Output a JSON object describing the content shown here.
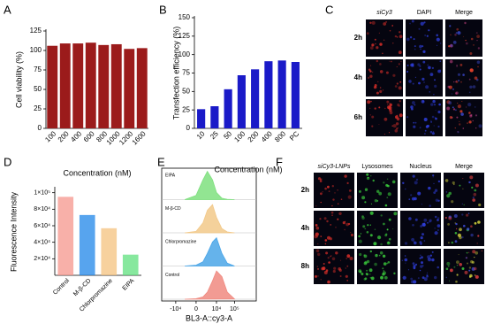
{
  "panel_labels": [
    "A",
    "B",
    "C",
    "D",
    "E",
    "F"
  ],
  "chart_data": [
    {
      "type": "bar",
      "ylabel": "Cell viability (%)",
      "xlabel": "Concentration (nM)",
      "categories": [
        "100",
        "200",
        "400",
        "600",
        "800",
        "1000",
        "1200",
        "1600"
      ],
      "values": [
        106,
        109,
        109,
        110,
        107,
        108,
        102,
        103
      ],
      "color": "#9b1b1b",
      "ylim": [
        0,
        125
      ],
      "yticks": [
        0,
        25,
        50,
        75,
        100,
        125
      ]
    },
    {
      "type": "bar",
      "ylabel": "Transfection efficiency (%)",
      "xlabel": "Concentration (nM)",
      "categories": [
        "10",
        "25",
        "50",
        "100",
        "200",
        "400",
        "800",
        "PC"
      ],
      "values": [
        26,
        30,
        53,
        72,
        80,
        91,
        92,
        90
      ],
      "color": "#1a1ac8",
      "ylim": [
        0,
        150
      ],
      "yticks": [
        0,
        25,
        50,
        75,
        100,
        125,
        150
      ]
    },
    {
      "type": "bar",
      "ylabel": "Fluorescence Intensity",
      "categories": [
        "Control",
        "M-β-CD",
        "Chlorpromazine",
        "EIPA"
      ],
      "values": [
        95000,
        73000,
        57000,
        25000
      ],
      "colors": [
        "#f5958c",
        "#1f86e8",
        "#f4c27e",
        "#5fe07e"
      ],
      "ylim": [
        0,
        105000
      ],
      "yticks": [
        {
          "value": 20000,
          "label": "2×10⁴"
        },
        {
          "value": 40000,
          "label": "4×10⁴"
        },
        {
          "value": 60000,
          "label": "6×10⁴"
        },
        {
          "value": 80000,
          "label": "8×10⁴"
        },
        {
          "value": 100000,
          "label": "1×10⁵"
        }
      ]
    },
    {
      "type": "ridgeline",
      "xlabel": "BL3-A::cy3-A",
      "xscale": "asinh",
      "x": [
        -3000,
        0,
        1500,
        3000,
        6000,
        10000,
        20000,
        40000,
        100000
      ],
      "xlim": [
        -60000,
        1600000
      ],
      "xticks": [
        {
          "value": -10000,
          "label": "-10⁴"
        },
        0,
        {
          "value": 10000,
          "label": "10⁴"
        },
        {
          "value": 100000,
          "label": "10⁵"
        }
      ],
      "series": [
        {
          "name": "EIPA",
          "color": "#7fe07f",
          "values": [
            0,
            15,
            70,
            100,
            70,
            25,
            5,
            1,
            0
          ]
        },
        {
          "name": "M-β-CD",
          "color": "#f2c98a",
          "values": [
            0,
            5,
            35,
            80,
            100,
            55,
            15,
            3,
            0
          ]
        },
        {
          "name": "Chlorpromazine",
          "color": "#4aa6e8",
          "values": [
            0,
            3,
            15,
            45,
            85,
            100,
            45,
            10,
            0
          ]
        },
        {
          "name": "Control",
          "color": "#f08a80",
          "values": [
            0,
            2,
            8,
            25,
            65,
            100,
            80,
            25,
            1
          ]
        }
      ]
    }
  ],
  "micrographs": [
    {
      "columns": [
        "siCy3",
        "DAPI",
        "Merge"
      ],
      "rows": [
        "2h",
        "4h",
        "6h"
      ]
    },
    {
      "columns": [
        "siCy3-LNPs",
        "Lysosomes",
        "Nucleus",
        "Merge"
      ],
      "rows": [
        "2h",
        "4h",
        "8h"
      ]
    }
  ]
}
